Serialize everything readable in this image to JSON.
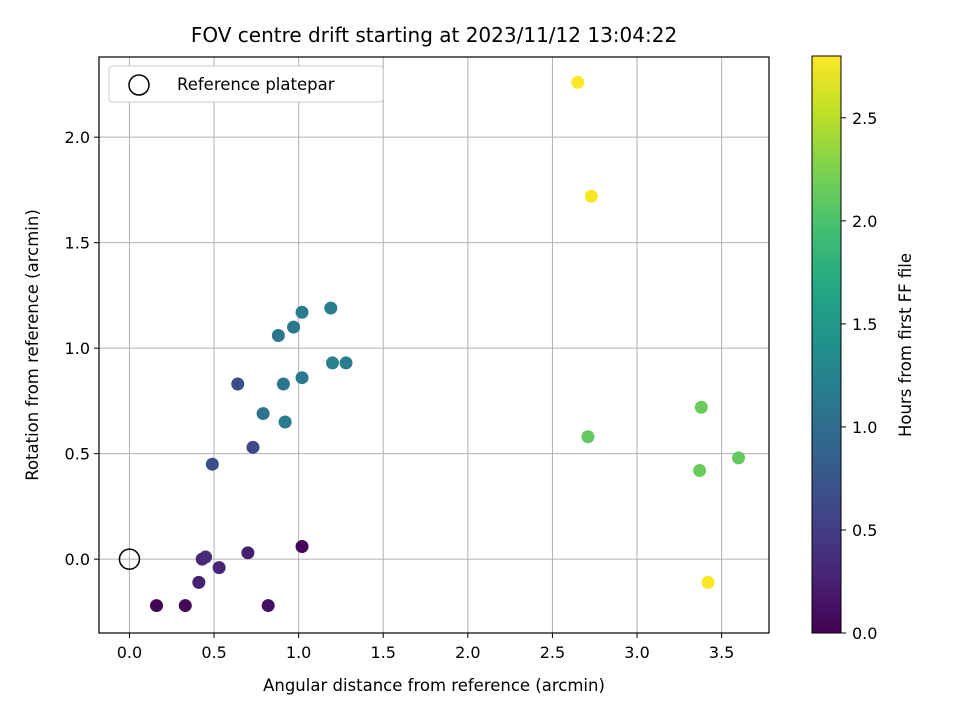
{
  "chart_data": {
    "type": "scatter",
    "title": "FOV centre drift starting at 2023/11/12 13:04:22",
    "xlabel": "Angular distance from reference (arcmin)",
    "ylabel": "Rotation from reference (arcmin)",
    "xlim": [
      -0.18,
      3.78
    ],
    "ylim": [
      -0.35,
      2.38
    ],
    "xticks": [
      0.0,
      0.5,
      1.0,
      1.5,
      2.0,
      2.5,
      3.0,
      3.5
    ],
    "xtick_labels": [
      "0.0",
      "0.5",
      "1.0",
      "1.5",
      "2.0",
      "2.5",
      "3.0",
      "3.5"
    ],
    "yticks": [
      0.0,
      0.5,
      1.0,
      1.5,
      2.0
    ],
    "ytick_labels": [
      "0.0",
      "0.5",
      "1.0",
      "1.5",
      "2.0"
    ],
    "grid": true,
    "legend": {
      "placement": "top-left",
      "entries": [
        "Reference platepar"
      ]
    },
    "reference_point": {
      "x": 0.0,
      "y": 0.0
    },
    "colorbar": {
      "label": "Hours from first FF file",
      "range": [
        0.0,
        2.8
      ],
      "ticks": [
        0.0,
        0.5,
        1.0,
        1.5,
        2.0,
        2.5
      ],
      "tick_labels": [
        "0.0",
        "0.5",
        "1.0",
        "1.5",
        "2.0",
        "2.5"
      ],
      "colormap": "viridis"
    },
    "points": [
      {
        "x": 0.16,
        "y": -0.22,
        "c": 0.02
      },
      {
        "x": 0.33,
        "y": -0.22,
        "c": 0.05
      },
      {
        "x": 0.41,
        "y": -0.11,
        "c": 0.25
      },
      {
        "x": 0.43,
        "y": 0.0,
        "c": 0.3
      },
      {
        "x": 0.45,
        "y": 0.01,
        "c": 0.33
      },
      {
        "x": 0.53,
        "y": -0.04,
        "c": 0.28
      },
      {
        "x": 0.7,
        "y": 0.03,
        "c": 0.22
      },
      {
        "x": 0.82,
        "y": -0.22,
        "c": 0.12
      },
      {
        "x": 1.02,
        "y": 0.06,
        "c": 0.05
      },
      {
        "x": 0.49,
        "y": 0.45,
        "c": 0.65
      },
      {
        "x": 0.73,
        "y": 0.53,
        "c": 0.6
      },
      {
        "x": 0.64,
        "y": 0.83,
        "c": 0.65
      },
      {
        "x": 0.79,
        "y": 0.69,
        "c": 1.05
      },
      {
        "x": 0.91,
        "y": 0.83,
        "c": 1.1
      },
      {
        "x": 0.92,
        "y": 0.65,
        "c": 1.15
      },
      {
        "x": 1.02,
        "y": 0.86,
        "c": 1.12
      },
      {
        "x": 0.88,
        "y": 1.06,
        "c": 1.1
      },
      {
        "x": 0.97,
        "y": 1.1,
        "c": 1.12
      },
      {
        "x": 1.02,
        "y": 1.17,
        "c": 1.18
      },
      {
        "x": 1.19,
        "y": 1.19,
        "c": 1.2
      },
      {
        "x": 1.2,
        "y": 0.93,
        "c": 1.22
      },
      {
        "x": 1.28,
        "y": 0.93,
        "c": 1.2
      },
      {
        "x": 2.71,
        "y": 0.58,
        "c": 2.12
      },
      {
        "x": 3.38,
        "y": 0.72,
        "c": 2.15
      },
      {
        "x": 3.37,
        "y": 0.42,
        "c": 2.15
      },
      {
        "x": 3.6,
        "y": 0.48,
        "c": 2.12
      },
      {
        "x": 2.65,
        "y": 2.26,
        "c": 2.8
      },
      {
        "x": 2.73,
        "y": 1.72,
        "c": 2.78
      },
      {
        "x": 3.42,
        "y": -0.11,
        "c": 2.8
      }
    ]
  }
}
